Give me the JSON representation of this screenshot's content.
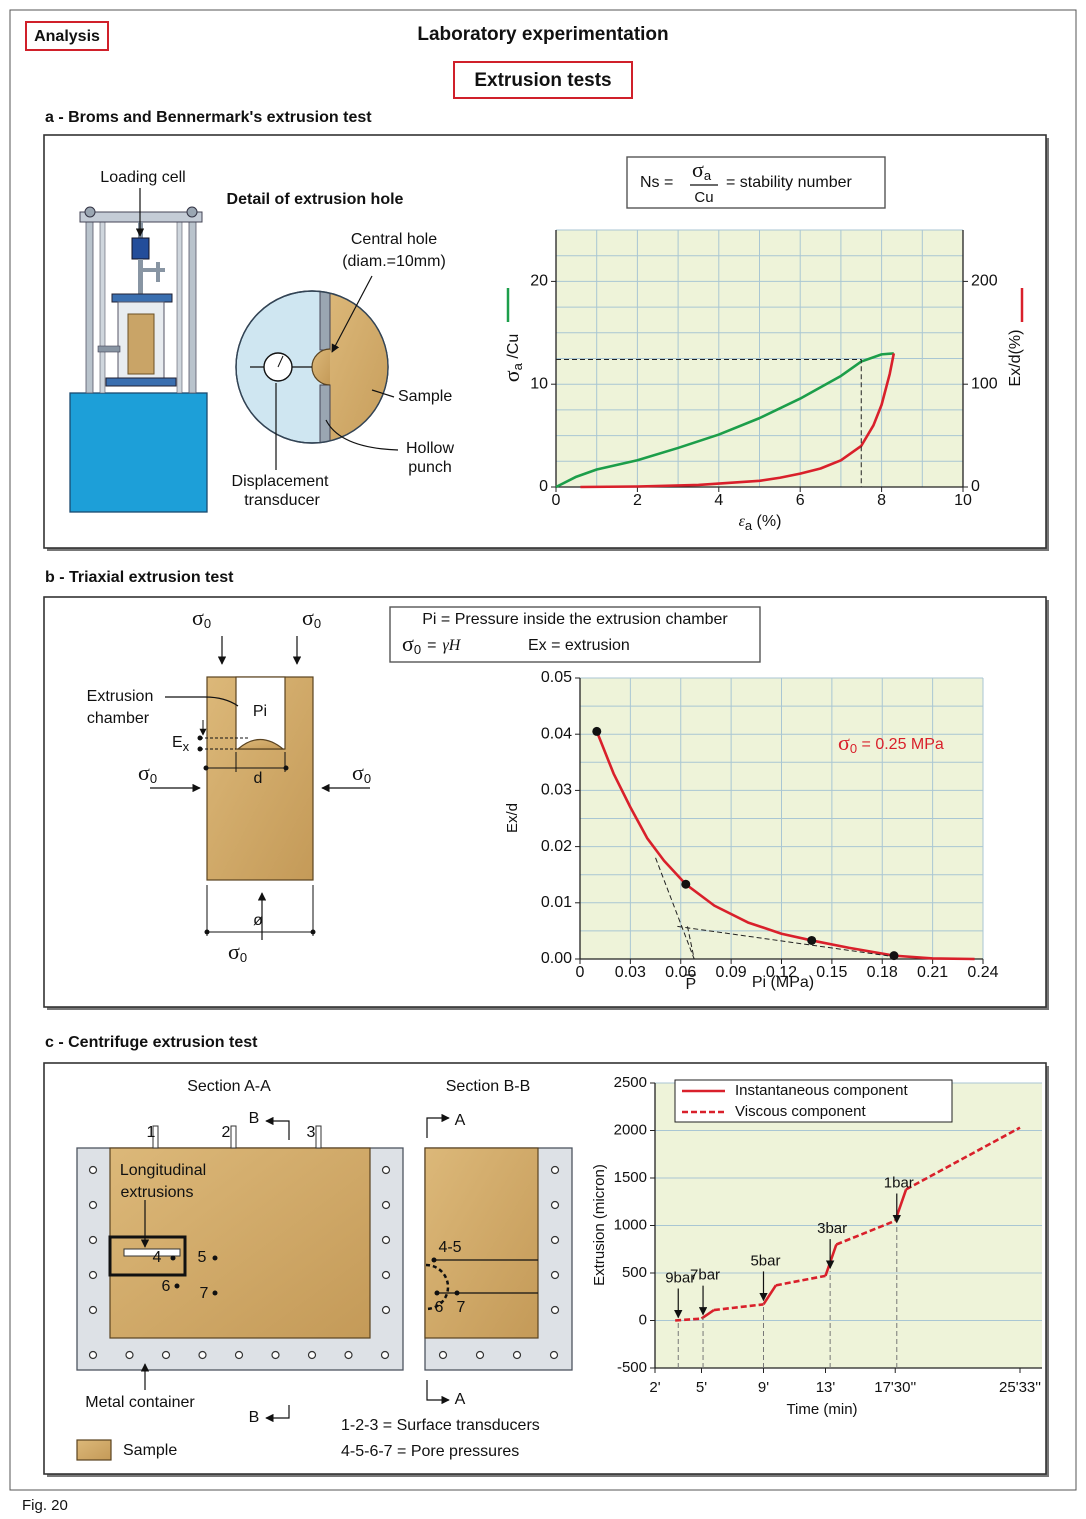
{
  "header": {
    "tag": "Analysis",
    "title": "Laboratory experimentation",
    "subtitle": "Extrusion tests"
  },
  "section_a": {
    "heading": "a - Broms and Bennermark's extrusion test",
    "loading_cell": "Loading cell",
    "detail_title": "Detail of extrusion hole",
    "central_hole": [
      "Central hole",
      "(diam.=10mm)"
    ],
    "sample": "Sample",
    "hollow_punch": [
      "Hollow",
      "punch"
    ],
    "transducer": [
      "Displacement",
      "transducer"
    ],
    "formula": {
      "lhs": "Ns =",
      "num": "σ",
      "num_sub": "a",
      "den": "Cu",
      "rhs": "= stability number"
    }
  },
  "section_b": {
    "heading": "b - Triaxial extrusion test",
    "sigma": "σ",
    "sigma_sub": "0",
    "legend_line1": "Pi = Pressure inside the extrusion chamber",
    "legend_eq": "=",
    "gamma_h": "γH",
    "legend_ex": "Ex = extrusion",
    "chamber": [
      "Extrusion",
      "chamber"
    ],
    "pi": "Pi",
    "ex": "E",
    "ex_sub": "x",
    "d": "d",
    "diam": "ø"
  },
  "section_c": {
    "heading": "c - Centrifuge extrusion test",
    "section_aa": "Section A-A",
    "section_bb": "Section B-B",
    "transducers": [
      "1",
      "2",
      "3"
    ],
    "cut_b": "B",
    "cut_a": "A",
    "longitudinal": [
      "Longitudinal",
      "extrusions"
    ],
    "points": [
      "4",
      "5",
      "6",
      "7"
    ],
    "bb_points": [
      "4-5",
      "6",
      "7"
    ],
    "container": "Metal container",
    "sample": "Sample",
    "note1": "1-2-3 = Surface transducers",
    "note2": "4-5-6-7 = Pore pressures"
  },
  "footer": "Fig. 20",
  "chart_data": [
    {
      "type": "line",
      "xlabel": "ε",
      "xlabel_sub": "a",
      "xlabel_rest": " (%)",
      "ylabel": "σ",
      "ylabel_sub": "a",
      "ylabel_rest": " /Cu",
      "y2label": "Ex/d(%)",
      "xlim": [
        0,
        10
      ],
      "xticks": [
        0,
        2,
        4,
        6,
        8,
        10
      ],
      "ylim": [
        0,
        25
      ],
      "yticks": [
        0,
        10,
        20
      ],
      "y2lim": [
        0,
        250
      ],
      "y2ticks": [
        0,
        100,
        200
      ],
      "grid": true,
      "minor_grid": [
        2,
        4
      ],
      "series": [
        {
          "color": "#1c9e4a",
          "x": [
            0,
            0.5,
            1,
            2,
            3,
            4,
            5,
            6,
            7,
            7.5,
            8,
            8.3
          ],
          "values": [
            0,
            1,
            1.7,
            2.6,
            3.8,
            5.1,
            6.7,
            8.6,
            10.8,
            12.2,
            12.9,
            13
          ]
        },
        {
          "color": "#d9202b",
          "axis": "y2",
          "x": [
            0.6,
            2,
            3.5,
            5,
            5.5,
            6,
            6.5,
            7,
            7.5,
            7.8,
            8,
            8.2,
            8.3
          ],
          "values": [
            0,
            0.5,
            2,
            6,
            9,
            13,
            18,
            26,
            40,
            60,
            80,
            110,
            130
          ]
        }
      ],
      "guide": {
        "x": 7.5,
        "y": 12.4
      }
    },
    {
      "type": "line",
      "xlabel": "Pi (MPa)",
      "ylabel": "Ex/d",
      "pbar": {
        "label": "P",
        "x": 0.066
      },
      "annotation": {
        "sigma": "σ",
        "sub": "0",
        "text": " = 0.25 MPa",
        "color": "#d9202b"
      },
      "xlim": [
        0,
        0.24
      ],
      "xticks": [
        0,
        0.03,
        0.06,
        0.09,
        0.12,
        0.15,
        0.18,
        0.21,
        0.24
      ],
      "ylim": [
        0,
        0.05
      ],
      "yticks": [
        {
          "value": 0,
          "label": "0.00"
        },
        0.01,
        0.02,
        0.03,
        0.04,
        0.05
      ],
      "grid": true,
      "minor_grid": [
        1,
        2
      ],
      "series": [
        {
          "color": "#d9202b",
          "x": [
            0.01,
            0.02,
            0.03,
            0.04,
            0.05,
            0.063,
            0.08,
            0.1,
            0.12,
            0.138,
            0.16,
            0.187,
            0.21,
            0.235
          ],
          "values": [
            0.0405,
            0.033,
            0.027,
            0.0215,
            0.0175,
            0.0133,
            0.0095,
            0.0065,
            0.0045,
            0.0033,
            0.002,
            0.0006,
            0.0001,
            0
          ]
        },
        {
          "color": "#111111",
          "style": "points",
          "x": [
            0.01,
            0.063,
            0.138,
            0.187
          ],
          "values": [
            0.0405,
            0.0133,
            0.0033,
            0.0006
          ]
        }
      ],
      "guides": [
        [
          0.045,
          0.018,
          0.068,
          0
        ],
        [
          0.058,
          0.0058,
          0.185,
          0.0005
        ],
        [
          0.064,
          0.0058,
          0.068,
          0
        ]
      ]
    },
    {
      "type": "line",
      "xlabel": "Time (min)",
      "ylabel": "Extrusion (micron)",
      "xlim": [
        2,
        25.55
      ],
      "xticks": [
        {
          "value": 2,
          "label": "2'"
        },
        {
          "value": 5,
          "label": "5'"
        },
        {
          "value": 9,
          "label": "9'"
        },
        {
          "value": 13,
          "label": "13'"
        },
        {
          "value": 17.5,
          "label": "17'30''"
        },
        {
          "value": 25.55,
          "label": "25'33''"
        }
      ],
      "ylim": [
        -500,
        2500
      ],
      "yticks": [
        -500,
        0,
        500,
        1000,
        1500,
        2000,
        2500
      ],
      "grid": "y",
      "legend": "top-left",
      "series": [
        {
          "name": "Instantaneous component",
          "color": "#d9202b",
          "x": [
            5,
            5.8,
            null,
            9,
            9.8,
            null,
            13,
            13.7,
            null,
            17.5,
            18.2
          ],
          "values": [
            20,
            110,
            null,
            170,
            370,
            null,
            470,
            800,
            null,
            1050,
            1380
          ]
        },
        {
          "name": "Viscous component",
          "color": "#d9202b",
          "dash": true,
          "x": [
            3.3,
            5,
            null,
            5.8,
            9,
            null,
            9.8,
            13,
            null,
            13.7,
            17.5,
            null,
            18.2,
            25.55
          ],
          "values": [
            0,
            20,
            null,
            110,
            170,
            null,
            370,
            470,
            null,
            800,
            1050,
            null,
            1380,
            2030
          ]
        }
      ],
      "loads": [
        {
          "label": "9bar",
          "x": 3.5,
          "y": 0
        },
        {
          "label": "7bar",
          "x": 5.1,
          "y": 30
        },
        {
          "label": "5bar",
          "x": 9,
          "y": 180
        },
        {
          "label": "3bar",
          "x": 13.3,
          "y": 520
        },
        {
          "label": "1bar",
          "x": 17.6,
          "y": 1000
        }
      ]
    }
  ]
}
